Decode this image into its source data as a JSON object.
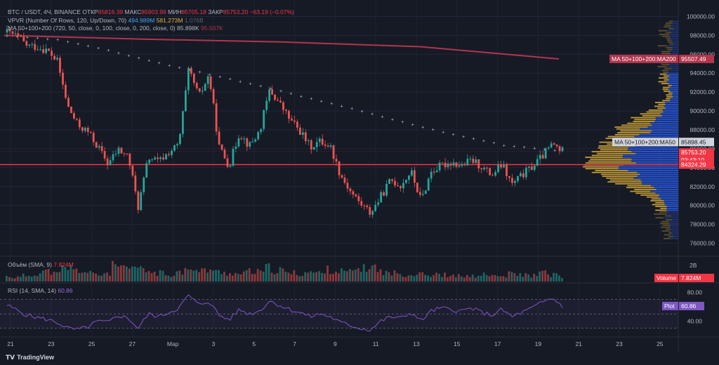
{
  "header": {
    "symbol": "BTC / USDT, 4Ч, BINANCE",
    "open_label": "ОТКР",
    "open_value": "85816.39",
    "high_label": "МАКС",
    "high_value": "85903.99",
    "low_label": "МИН",
    "low_value": "85705.18",
    "close_label": "ЗАКР",
    "close_value": "85753.20",
    "change": "−63.19 (−0.07%)"
  },
  "indicators": {
    "vpvr_label": "VPVR (Number Of Rows, 120, Up/Down, 70)",
    "vpvr_v1": "494.989M",
    "vpvr_v2": "581.273M",
    "vpvr_v3": "1.076B",
    "ma_label": "MA 50+100+200 (720, 50, close, 0, 100, close, 0, 200, close, 0)",
    "ma_v1": "85.898K",
    "ma_v2": "95.507K",
    "volume_label": "Объём (SMA, 9)",
    "volume_value": "7.824M",
    "rsi_label": "RSI (14, SMA, 14)",
    "rsi_value": "60.86"
  },
  "badges": {
    "ma200": "MA 50+100+200:MA200",
    "ma200_value": "95507.49",
    "ma50": "MA 50+100+200:MA50",
    "ma50_value": "85898.45",
    "price": "85753.20",
    "timer": "03:43:10",
    "hline": "84324.29",
    "volume": "Volume",
    "volume_value": "7.824M",
    "plot": "Plot",
    "plot_value": "60.86"
  },
  "branding": {
    "name": "TradingView"
  },
  "colors": {
    "up": "#26a69a",
    "down": "#ef5350",
    "ma200": "#b2354c",
    "hline": "#f23645",
    "vpvr_blue": "#2962ff",
    "vpvr_yellow": "#e0b33a",
    "rsi": "#7e57c2"
  },
  "chart_data": {
    "type": "candlestick",
    "price_axis_ticks": [
      "100000.00",
      "98000.00",
      "96000.00",
      "94000.00",
      "92000.00",
      "90000.00",
      "88000.00",
      "86000.00",
      "84000.00",
      "82000.00",
      "80000.00",
      "78000.00",
      "76000.00"
    ],
    "ylim": [
      75000,
      101000
    ],
    "volume_axis_ticks": [
      "2B"
    ],
    "rsi_axis_ticks": [
      "80.00",
      "40.00"
    ],
    "rsi_ylim": [
      20,
      90
    ],
    "x_ticks": [
      "21",
      "23",
      "25",
      "27",
      "Мар",
      "3",
      "5",
      "7",
      "9",
      "11",
      "13",
      "15",
      "17",
      "19",
      "21",
      "23",
      "25"
    ],
    "horizontal_line": 84324.29,
    "ma200": [
      98000,
      97600,
      97300,
      96800,
      95507
    ],
    "ma50_dots": [
      98000,
      97600,
      96500,
      95200,
      94000,
      92800,
      91500,
      90200,
      88800,
      87500,
      86400,
      85898
    ],
    "price_path": [
      98300,
      97900,
      96900,
      96800,
      96400,
      95200,
      90500,
      88500,
      87800,
      86200,
      84400,
      85900,
      85200,
      79800,
      85100,
      84600,
      85600,
      86400,
      94400,
      91500,
      93800,
      86200,
      84200,
      87700,
      86300,
      87800,
      92200,
      90800,
      89100,
      87900,
      86200,
      86800,
      86300,
      83300,
      81500,
      80200,
      79200,
      80900,
      82700,
      82100,
      83600,
      80500,
      83600,
      84200,
      84600,
      84200,
      84800,
      84100,
      83200,
      84300,
      82200,
      83200,
      84100,
      85200,
      86500,
      85753
    ],
    "volume_ratio": [
      0.3,
      0.25,
      0.35,
      0.5,
      0.6,
      0.45,
      0.8,
      0.65,
      0.55,
      0.4,
      0.5,
      0.9,
      0.7,
      0.85,
      0.6,
      0.5,
      0.4,
      0.55,
      0.95,
      0.6,
      0.7,
      0.55,
      0.5,
      0.45,
      0.6,
      0.55,
      0.8,
      0.65,
      0.5,
      0.45,
      0.55,
      0.5,
      0.7,
      0.6,
      0.55,
      0.75,
      0.85,
      0.6,
      0.5,
      0.45,
      0.4,
      0.55,
      0.35,
      0.4,
      0.3,
      0.35,
      0.3,
      0.4,
      0.35,
      0.3,
      0.45,
      0.4,
      0.35,
      0.5,
      0.4,
      0.3
    ],
    "rsi": [
      62,
      55,
      48,
      45,
      42,
      38,
      30,
      28,
      32,
      40,
      38,
      48,
      44,
      30,
      50,
      46,
      52,
      58,
      76,
      62,
      68,
      48,
      42,
      56,
      50,
      54,
      68,
      62,
      56,
      52,
      46,
      50,
      46,
      38,
      34,
      30,
      28,
      40,
      46,
      44,
      52,
      40,
      54,
      58,
      56,
      54,
      58,
      52,
      48,
      56,
      46,
      52,
      58,
      66,
      72,
      60.86
    ]
  }
}
